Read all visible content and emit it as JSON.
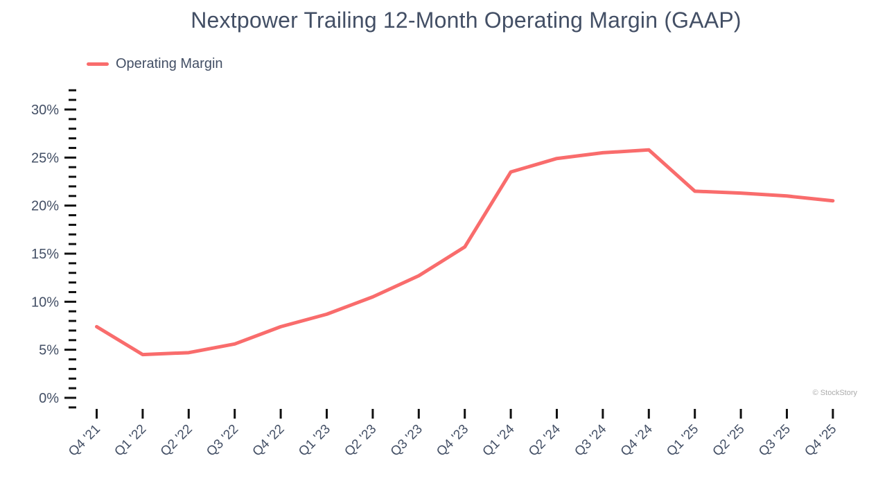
{
  "header": {
    "title": "Nextpower Trailing 12-Month Operating Margin (GAAP)"
  },
  "legend": {
    "label": "Operating Margin"
  },
  "watermark": {
    "text": "© StockStory"
  },
  "colors": {
    "line": "#F96C6C",
    "text": "#434F65",
    "tick": "#111111",
    "watermark": "#ABABAB",
    "background": "#FFFFFF"
  },
  "chart_data": {
    "type": "line",
    "title": "Nextpower Trailing 12-Month Operating Margin (GAAP)",
    "xlabel": "",
    "ylabel": "",
    "categories": [
      "Q4 '21",
      "Q1 '22",
      "Q2 '22",
      "Q3 '22",
      "Q4 '22",
      "Q1 '23",
      "Q2 '23",
      "Q3 '23",
      "Q4 '23",
      "Q1 '24",
      "Q2 '24",
      "Q3 '24",
      "Q4 '24",
      "Q1 '25",
      "Q2 '25",
      "Q3 '25",
      "Q4 '25"
    ],
    "series": [
      {
        "name": "Operating Margin",
        "color": "#F96C6C",
        "values": [
          7.4,
          4.5,
          4.7,
          5.6,
          7.4,
          8.7,
          10.5,
          12.7,
          15.7,
          23.5,
          24.9,
          25.5,
          25.8,
          21.5,
          21.3,
          21.0,
          20.5
        ]
      }
    ],
    "y_axis": {
      "unit": "%",
      "tick_values": [
        0,
        5,
        10,
        15,
        20,
        25,
        30
      ],
      "tick_labels": [
        "0%",
        "5%",
        "10%",
        "15%",
        "20%",
        "25%",
        "30%"
      ],
      "minor_tick_step": 1,
      "minor_tick_min": -1,
      "minor_tick_max": 32
    },
    "ylim": [
      -1.5,
      32.5
    ],
    "grid": false,
    "legend_position": "top-left"
  }
}
